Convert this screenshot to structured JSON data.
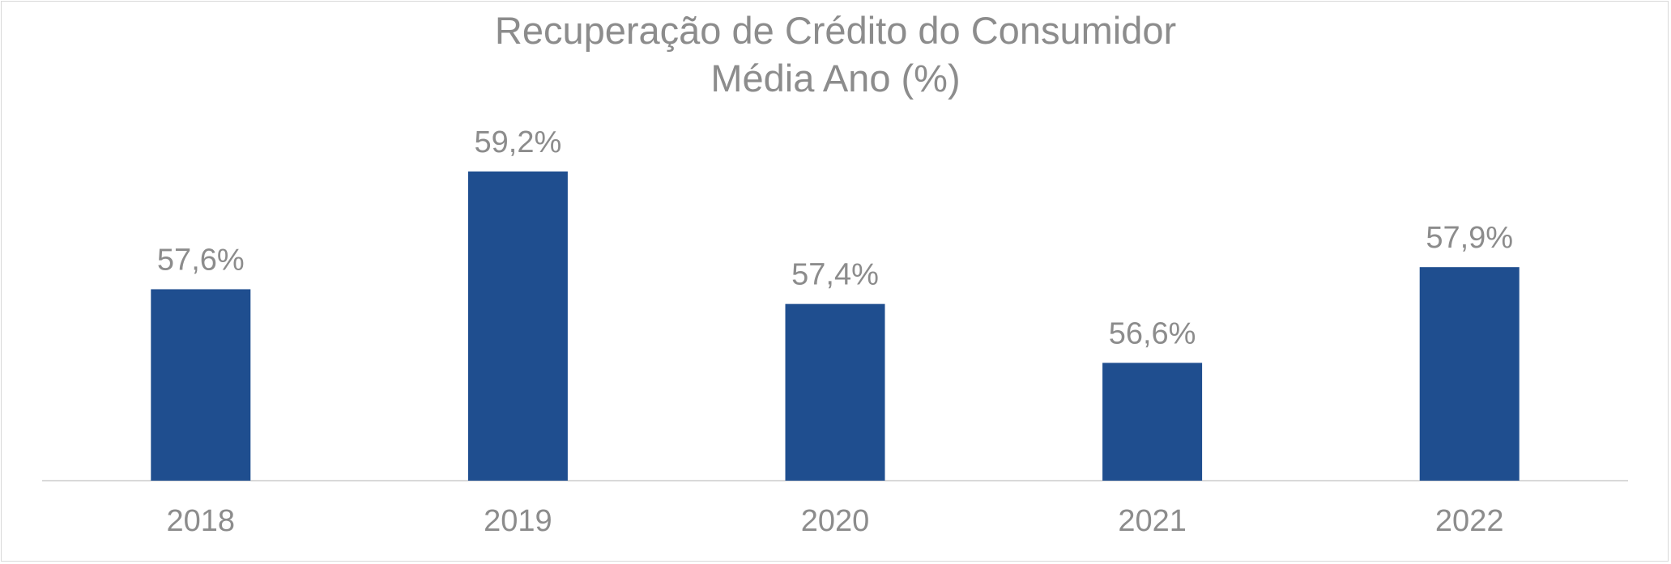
{
  "chart_data": {
    "type": "bar",
    "title": "Recuperação de Crédito do Consumidor",
    "subtitle": "Média Ano (%)",
    "categories": [
      "2018",
      "2019",
      "2020",
      "2021",
      "2022"
    ],
    "values": [
      57.6,
      59.2,
      57.4,
      56.6,
      57.9
    ],
    "data_labels": [
      "57,6%",
      "59,2%",
      "57,4%",
      "56,6%",
      "57,9%"
    ],
    "xlabel": "",
    "ylabel": "",
    "ylim": [
      55.0,
      60.1
    ],
    "grid": false,
    "legend": "none",
    "bar_color": "#1f4e8f",
    "text_color": "#8c8c8c",
    "axis_color": "#d9d9d9"
  }
}
